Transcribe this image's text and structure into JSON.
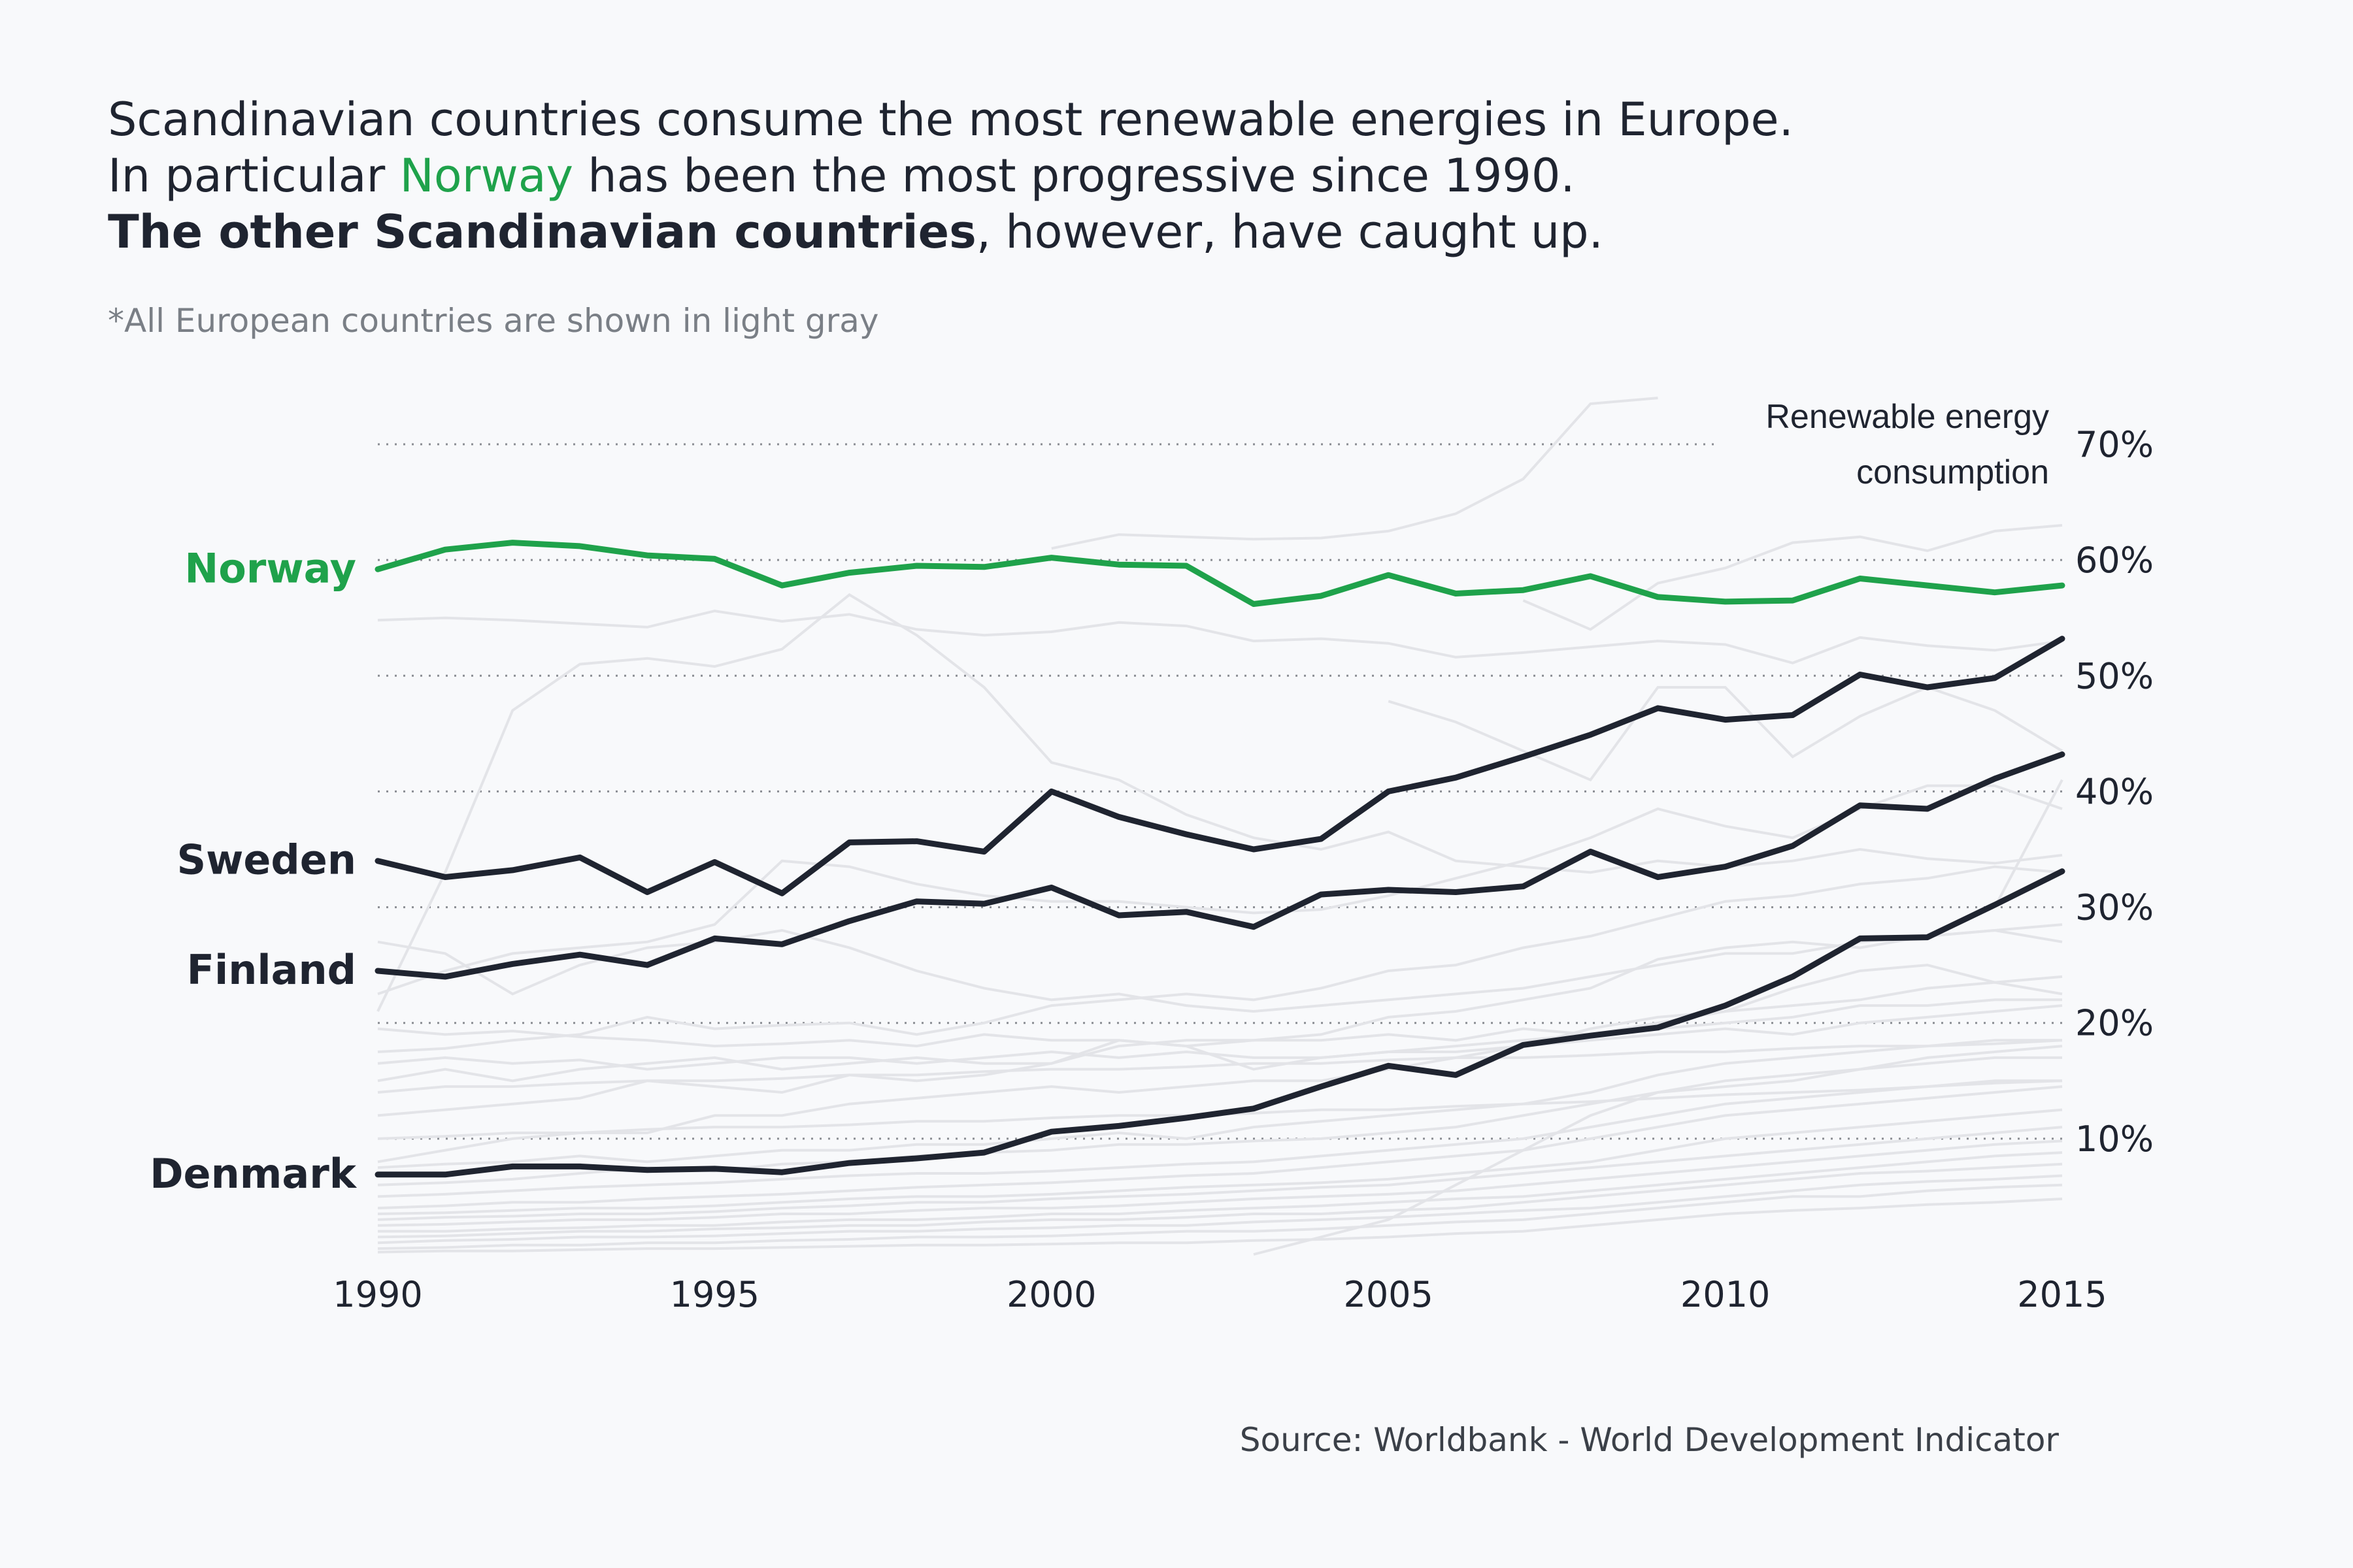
{
  "title": {
    "line1": "Scandinavian countries consume the most renewable energies in Europe.",
    "line2_pre": "In particular ",
    "line2_highlight": "Norway",
    "line2_post": " has been the most progressive since 1990.",
    "line3_bold": "The other Scandinavian countries",
    "line3_post": ", however, have caught up."
  },
  "subtitle": "*All European countries are shown in light gray",
  "source": "Source: Worldbank - World Development Indicator",
  "colors": {
    "norway": "#1fa24b",
    "scandinavia": "#1f2430",
    "background_countries": "#e3e4e8",
    "grid": "#8a8d93"
  },
  "chart_data": {
    "type": "line",
    "ylabel": [
      "Renewable energy",
      "consumption"
    ],
    "xlim": [
      1990,
      2015
    ],
    "ylim": [
      0,
      75
    ],
    "x_ticks": [
      "1990",
      "1995",
      "2000",
      "2005",
      "2010",
      "2015"
    ],
    "y_ticks": [
      "10%",
      "20%",
      "30%",
      "40%",
      "50%",
      "60%",
      "70%"
    ],
    "y_tick_values": [
      10,
      20,
      30,
      40,
      50,
      60,
      70
    ],
    "x": [
      1990,
      1991,
      1992,
      1993,
      1994,
      1995,
      1996,
      1997,
      1998,
      1999,
      2000,
      2001,
      2002,
      2003,
      2004,
      2005,
      2006,
      2007,
      2008,
      2009,
      2010,
      2011,
      2012,
      2013,
      2014,
      2015
    ],
    "series": [
      {
        "name": "Norway",
        "highlight": "norway",
        "values": [
          59.2,
          60.9,
          61.5,
          61.2,
          60.4,
          60.1,
          57.8,
          58.9,
          59.5,
          59.4,
          60.2,
          59.6,
          59.5,
          56.2,
          56.9,
          58.7,
          57.1,
          57.4,
          58.6,
          56.8,
          56.4,
          56.5,
          58.4,
          57.8,
          57.2,
          57.8
        ]
      },
      {
        "name": "Sweden",
        "highlight": "scandinavia",
        "values": [
          34.0,
          32.6,
          33.2,
          34.3,
          31.3,
          33.9,
          31.2,
          35.6,
          35.7,
          34.8,
          40.0,
          37.8,
          36.3,
          35.0,
          35.9,
          40.0,
          41.2,
          43.0,
          44.9,
          47.2,
          46.2,
          46.6,
          50.1,
          49.0,
          49.8,
          53.2
        ]
      },
      {
        "name": "Finland",
        "highlight": "scandinavia",
        "values": [
          24.5,
          24.0,
          25.1,
          25.9,
          25.0,
          27.3,
          26.8,
          28.8,
          30.5,
          30.3,
          31.7,
          29.3,
          29.6,
          28.3,
          31.1,
          31.5,
          31.3,
          31.8,
          34.8,
          32.6,
          33.5,
          35.3,
          38.8,
          38.5,
          41.1,
          43.2
        ]
      },
      {
        "name": "Denmark",
        "highlight": "scandinavia",
        "values": [
          6.9,
          6.9,
          7.6,
          7.6,
          7.3,
          7.4,
          7.1,
          7.9,
          8.3,
          8.8,
          10.6,
          11.1,
          11.8,
          12.6,
          14.5,
          16.3,
          15.5,
          18.1,
          18.9,
          19.6,
          21.5,
          24.0,
          27.3,
          27.4,
          30.2,
          33.1
        ]
      }
    ],
    "background_series": [
      [
        54.8,
        55.0,
        54.8,
        54.5,
        54.2,
        55.6,
        54.7,
        55.3,
        54.0,
        53.5,
        53.8,
        54.6,
        54.3,
        53.0,
        53.2,
        52.8,
        51.6,
        52.0,
        52.5,
        53.0,
        52.7,
        51.1,
        53.3,
        52.6,
        52.2,
        53.0
      ],
      [
        21.0,
        33.0,
        47.0,
        51.0,
        51.5,
        50.8,
        52.3,
        57.0,
        53.5,
        49.0,
        42.5,
        41.0,
        38.0,
        36.0,
        35.0,
        36.5,
        34.0,
        33.5,
        33.0,
        34.0,
        33.5,
        34.0,
        35.0,
        34.2,
        33.8,
        34.5
      ],
      [
        null,
        null,
        null,
        null,
        null,
        null,
        null,
        null,
        null,
        null,
        61.0,
        62.2,
        62.0,
        61.8,
        61.9,
        62.5,
        64.0,
        67.0,
        73.5,
        74.0,
        null,
        null,
        null,
        null,
        null,
        null
      ],
      [
        null,
        null,
        null,
        null,
        null,
        null,
        null,
        null,
        null,
        null,
        null,
        null,
        null,
        null,
        null,
        null,
        null,
        56.5,
        54.0,
        58.0,
        59.3,
        61.5,
        62.0,
        60.8,
        62.5,
        63.0
      ],
      [
        null,
        null,
        null,
        null,
        null,
        null,
        null,
        null,
        null,
        null,
        null,
        null,
        null,
        null,
        null,
        47.8,
        46.0,
        43.5,
        41.0,
        49.0,
        49.0,
        43.0,
        46.5,
        49.0,
        47.0,
        43.5
      ],
      [
        22.5,
        24.5,
        26.0,
        26.5,
        27.0,
        28.5,
        34.0,
        33.5,
        32.0,
        31.0,
        30.5,
        30.5,
        30.0,
        29.5,
        29.8,
        31.0,
        32.5,
        34.0,
        36.0,
        38.5,
        37.0,
        36.0,
        38.5,
        40.5,
        40.5,
        38.5
      ],
      [
        17.5,
        17.8,
        18.5,
        19.0,
        20.5,
        19.5,
        19.8,
        20.0,
        19.0,
        20.0,
        21.5,
        22.0,
        22.5,
        22.0,
        23.0,
        24.5,
        25.0,
        26.5,
        27.5,
        29.0,
        30.5,
        31.0,
        32.0,
        32.5,
        33.5,
        33.0
      ],
      [
        15.0,
        16.0,
        15.0,
        16.0,
        16.5,
        17.0,
        16.0,
        16.5,
        17.0,
        16.5,
        16.5,
        18.0,
        18.5,
        18.5,
        19.0,
        20.5,
        21.0,
        22.0,
        23.0,
        25.5,
        26.5,
        27.0,
        26.5,
        27.5,
        28.0,
        27.0
      ],
      [
        12.0,
        12.5,
        13.0,
        13.5,
        15.0,
        14.5,
        14.0,
        15.5,
        15.0,
        15.5,
        16.5,
        18.5,
        18.0,
        16.0,
        17.0,
        17.5,
        18.0,
        18.5,
        19.0,
        20.0,
        21.0,
        23.0,
        24.5,
        25.0,
        23.5,
        22.5
      ],
      [
        19.5,
        19.0,
        19.3,
        18.8,
        18.5,
        18.0,
        18.2,
        18.5,
        18.0,
        19.0,
        18.5,
        18.5,
        18.0,
        18.5,
        18.5,
        19.0,
        18.5,
        19.5,
        19.0,
        19.5,
        20.0,
        20.5,
        21.5,
        21.5,
        22.0,
        22.0
      ],
      [
        16.5,
        17.0,
        16.5,
        16.8,
        16.0,
        16.5,
        17.0,
        17.0,
        16.5,
        17.0,
        17.5,
        17.0,
        17.5,
        17.0,
        17.0,
        17.5,
        17.5,
        18.0,
        18.5,
        19.0,
        19.5,
        19.0,
        20.0,
        20.5,
        21.0,
        21.5
      ],
      [
        8.0,
        9.0,
        10.0,
        10.5,
        10.5,
        12.0,
        12.0,
        13.0,
        13.5,
        14.0,
        14.5,
        14.0,
        14.5,
        15.0,
        15.0,
        16.0,
        17.0,
        18.0,
        19.5,
        20.5,
        21.0,
        21.5,
        22.0,
        23.0,
        23.5,
        24.0
      ],
      [
        7.5,
        7.8,
        8.0,
        8.5,
        8.0,
        8.5,
        9.0,
        9.0,
        9.5,
        9.5,
        10.0,
        10.5,
        10.0,
        11.0,
        11.5,
        12.0,
        12.5,
        13.0,
        14.0,
        15.5,
        16.5,
        17.0,
        17.5,
        18.0,
        18.5,
        18.5
      ],
      [
        6.0,
        6.2,
        6.5,
        7.0,
        7.5,
        7.2,
        7.8,
        8.0,
        8.5,
        8.8,
        9.0,
        9.5,
        9.5,
        9.8,
        10.0,
        10.5,
        11.0,
        12.0,
        13.0,
        14.0,
        15.0,
        15.5,
        16.0,
        16.5,
        17.0,
        17.0
      ],
      [
        5.0,
        5.2,
        5.5,
        5.8,
        6.0,
        6.2,
        6.5,
        6.8,
        7.0,
        7.0,
        7.2,
        7.5,
        7.8,
        8.0,
        8.5,
        9.0,
        9.5,
        10.0,
        11.0,
        12.0,
        13.0,
        13.5,
        14.0,
        14.5,
        15.0,
        15.0
      ],
      [
        4.0,
        4.2,
        4.5,
        4.5,
        4.8,
        5.0,
        5.2,
        5.5,
        5.8,
        6.0,
        6.2,
        6.5,
        6.8,
        7.0,
        7.5,
        8.0,
        8.5,
        9.0,
        10.0,
        11.0,
        12.0,
        12.5,
        13.0,
        13.5,
        14.0,
        14.5
      ],
      [
        3.5,
        3.6,
        3.8,
        4.0,
        4.0,
        4.2,
        4.5,
        4.8,
        5.0,
        5.0,
        5.2,
        5.5,
        5.8,
        6.0,
        6.2,
        6.5,
        7.0,
        7.5,
        8.0,
        9.0,
        10.0,
        10.5,
        11.0,
        11.5,
        12.0,
        12.5
      ],
      [
        3.0,
        3.2,
        3.3,
        3.5,
        3.5,
        3.7,
        4.0,
        4.2,
        4.5,
        4.5,
        4.8,
        5.0,
        5.2,
        5.5,
        5.8,
        6.0,
        6.5,
        7.0,
        7.5,
        8.0,
        8.5,
        9.0,
        9.5,
        10.0,
        10.5,
        11.0
      ],
      [
        2.5,
        2.6,
        2.8,
        3.0,
        3.0,
        3.2,
        3.5,
        3.5,
        3.8,
        4.0,
        4.0,
        4.2,
        4.5,
        4.8,
        5.0,
        5.2,
        5.5,
        6.0,
        6.5,
        7.0,
        7.5,
        8.0,
        8.5,
        9.0,
        9.5,
        9.8
      ],
      [
        2.0,
        2.0,
        2.2,
        2.3,
        2.5,
        2.5,
        2.8,
        3.0,
        3.0,
        3.2,
        3.5,
        3.5,
        3.8,
        4.0,
        4.2,
        4.5,
        4.8,
        5.0,
        5.5,
        6.0,
        6.5,
        7.0,
        7.5,
        8.0,
        8.5,
        8.8
      ],
      [
        1.5,
        1.6,
        1.8,
        2.0,
        2.0,
        2.2,
        2.3,
        2.5,
        2.5,
        2.8,
        3.0,
        3.0,
        3.2,
        3.5,
        3.5,
        3.8,
        4.0,
        4.5,
        5.0,
        5.5,
        6.0,
        6.5,
        7.0,
        7.2,
        7.5,
        7.8
      ],
      [
        1.0,
        1.2,
        1.3,
        1.5,
        1.5,
        1.6,
        1.8,
        2.0,
        2.0,
        2.2,
        2.3,
        2.5,
        2.5,
        2.8,
        3.0,
        3.2,
        3.5,
        3.8,
        4.0,
        4.5,
        5.0,
        5.5,
        6.0,
        6.3,
        6.5,
        6.8
      ],
      [
        0.5,
        0.6,
        0.8,
        0.8,
        1.0,
        1.0,
        1.2,
        1.3,
        1.5,
        1.5,
        1.6,
        1.8,
        2.0,
        2.0,
        2.2,
        2.5,
        2.8,
        3.0,
        3.5,
        4.0,
        4.5,
        5.0,
        5.0,
        5.5,
        5.8,
        6.0
      ],
      [
        0.2,
        0.3,
        0.3,
        0.4,
        0.5,
        0.5,
        0.6,
        0.7,
        0.8,
        0.8,
        0.9,
        1.0,
        1.0,
        1.2,
        1.3,
        1.5,
        1.8,
        2.0,
        2.5,
        3.0,
        3.5,
        3.8,
        4.0,
        4.3,
        4.5,
        4.8
      ],
      [
        null,
        null,
        null,
        null,
        null,
        null,
        null,
        null,
        null,
        null,
        null,
        null,
        null,
        0.0,
        1.5,
        3.0,
        6.0,
        9.0,
        12.0,
        14.0,
        14.5,
        15.0,
        16.0,
        17.0,
        17.5,
        18.0
      ],
      [
        27.0,
        26.0,
        22.5,
        25.0,
        26.5,
        27.0,
        28.0,
        26.5,
        24.5,
        23.0,
        22.0,
        22.5,
        21.5,
        21.0,
        21.5,
        22.0,
        22.5,
        23.0,
        24.0,
        25.0,
        26.0,
        26.0,
        27.0,
        27.5,
        28.0,
        28.5
      ],
      [
        14.0,
        14.5,
        14.5,
        14.8,
        15.0,
        15.0,
        15.2,
        15.5,
        15.5,
        15.8,
        16.0,
        16.0,
        16.2,
        16.5,
        16.5,
        16.8,
        17.0,
        17.0,
        17.2,
        17.5,
        17.5,
        17.8,
        18.0,
        18.0,
        18.2,
        18.5
      ],
      [
        10.0,
        10.2,
        10.5,
        10.5,
        10.8,
        11.0,
        11.0,
        11.2,
        11.5,
        11.5,
        11.8,
        12.0,
        12.0,
        12.2,
        12.5,
        12.5,
        12.8,
        13.0,
        13.2,
        13.5,
        13.8,
        14.0,
        14.2,
        14.5,
        14.8,
        15.0
      ],
      [
        null,
        null,
        null,
        null,
        null,
        null,
        null,
        null,
        null,
        null,
        null,
        null,
        null,
        null,
        null,
        null,
        null,
        null,
        null,
        null,
        null,
        null,
        null,
        null,
        30.0,
        41.0
      ]
    ]
  }
}
